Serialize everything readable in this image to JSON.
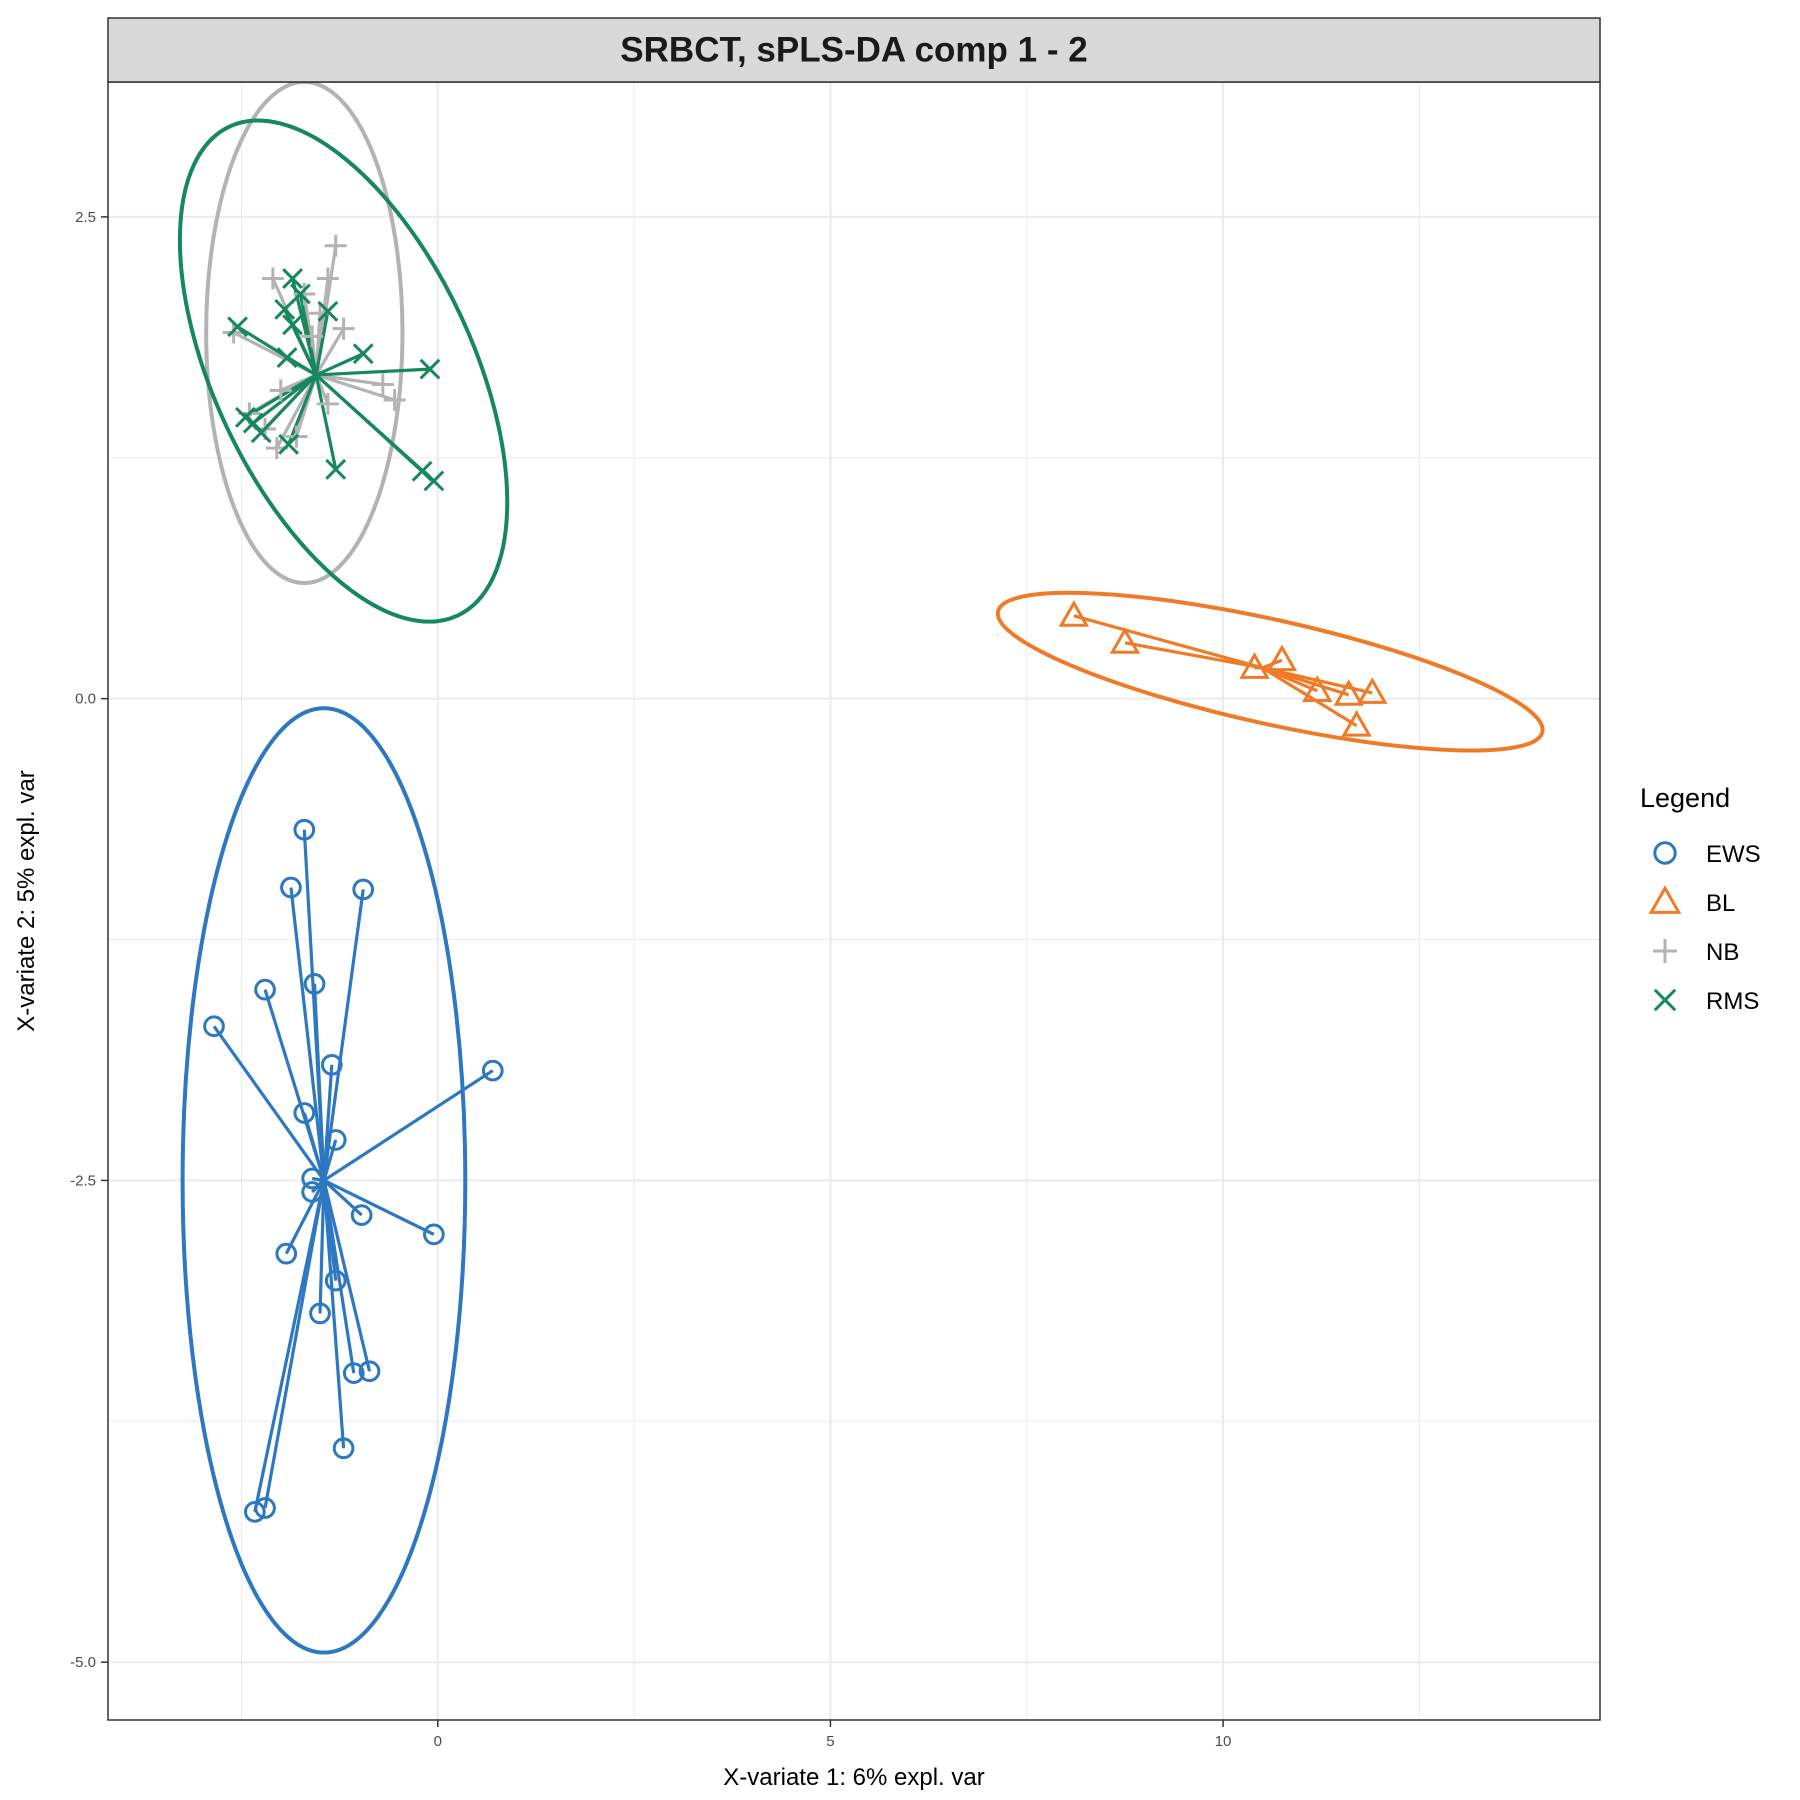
{
  "chart_data": {
    "type": "scatter",
    "title": "SRBCT, sPLS-DA comp 1 - 2",
    "xlabel": "X-variate 1: 6% expl. var",
    "ylabel": "X-variate 2: 5% expl. var",
    "xlim": [
      -4.2,
      14.8
    ],
    "ylim": [
      -5.3,
      3.2
    ],
    "x_ticks": [
      {
        "value": 0,
        "label": "0"
      },
      {
        "value": 5,
        "label": "5"
      },
      {
        "value": 10,
        "label": "10"
      }
    ],
    "y_ticks": [
      {
        "value": 2.5,
        "label": "2.5"
      },
      {
        "value": 0,
        "label": "0.0"
      },
      {
        "value": -2.5,
        "label": "-2.5"
      },
      {
        "value": -5,
        "label": "-5.0"
      }
    ],
    "grid": true,
    "legend": {
      "title": "Legend",
      "placement": "right"
    },
    "series": [
      {
        "name": "EWS",
        "marker": "circle",
        "color": "#2d78c0",
        "centroid": [
          -1.45,
          -2.5
        ],
        "ellipse": {
          "cx": -1.45,
          "cy": -2.5,
          "rx": 1.8,
          "ry": 2.45,
          "angle_deg": 0
        },
        "points": [
          [
            -1.7,
            -0.68
          ],
          [
            -1.87,
            -0.98
          ],
          [
            -0.95,
            -0.99
          ],
          [
            -2.2,
            -1.51
          ],
          [
            -1.57,
            -1.48
          ],
          [
            -2.85,
            -1.7
          ],
          [
            -1.35,
            -1.9
          ],
          [
            0.7,
            -1.93
          ],
          [
            -1.7,
            -2.15
          ],
          [
            -1.3,
            -2.29
          ],
          [
            -1.6,
            -2.49
          ],
          [
            -1.6,
            -2.56
          ],
          [
            -0.97,
            -2.68
          ],
          [
            -0.05,
            -2.78
          ],
          [
            -1.93,
            -2.88
          ],
          [
            -1.3,
            -3.02
          ],
          [
            -1.5,
            -3.19
          ],
          [
            -1.07,
            -3.5
          ],
          [
            -0.87,
            -3.49
          ],
          [
            -1.2,
            -3.89
          ],
          [
            -2.2,
            -4.2
          ],
          [
            -2.33,
            -4.22
          ]
        ]
      },
      {
        "name": "BL",
        "marker": "triangle",
        "color": "#ef7b29",
        "centroid": [
          10.5,
          0.16
        ],
        "ellipse": {
          "cx": 10.6,
          "cy": 0.14,
          "rx": 3.55,
          "ry": 0.27,
          "angle_deg": 12.5
        },
        "points": [
          [
            8.1,
            0.43
          ],
          [
            8.75,
            0.29
          ],
          [
            10.4,
            0.16
          ],
          [
            10.75,
            0.2
          ],
          [
            11.2,
            0.04
          ],
          [
            11.6,
            0.02
          ],
          [
            11.9,
            0.03
          ],
          [
            11.7,
            -0.14
          ]
        ]
      },
      {
        "name": "NB",
        "marker": "plus",
        "color": "#b3b3b3",
        "centroid": [
          -1.55,
          1.68
        ],
        "ellipse": {
          "cx": -1.7,
          "cy": 1.9,
          "rx": 1.25,
          "ry": 1.3,
          "angle_deg": 0
        },
        "points": [
          [
            -2.6,
            1.9
          ],
          [
            -2.1,
            2.18
          ],
          [
            -1.3,
            2.35
          ],
          [
            -1.4,
            2.18
          ],
          [
            -1.7,
            2.1
          ],
          [
            -1.5,
            2.0
          ],
          [
            -1.2,
            1.92
          ],
          [
            -1.6,
            1.88
          ],
          [
            -2.0,
            1.6
          ],
          [
            -0.7,
            1.63
          ],
          [
            -0.55,
            1.55
          ],
          [
            -1.4,
            1.53
          ],
          [
            -2.4,
            1.48
          ],
          [
            -2.2,
            1.4
          ],
          [
            -2.05,
            1.3
          ],
          [
            -1.8,
            1.36
          ]
        ]
      },
      {
        "name": "RMS",
        "marker": "x",
        "color": "#16885c",
        "centroid": [
          -1.55,
          1.68
        ],
        "ellipse": {
          "cx": -1.2,
          "cy": 1.7,
          "rx": 1.65,
          "ry": 1.4,
          "angle_deg": -25
        },
        "points": [
          [
            -1.85,
            2.18
          ],
          [
            -1.75,
            2.1
          ],
          [
            -1.95,
            2.02
          ],
          [
            -1.4,
            2.01
          ],
          [
            -1.85,
            1.94
          ],
          [
            -2.55,
            1.93
          ],
          [
            -0.95,
            1.79
          ],
          [
            -1.92,
            1.77
          ],
          [
            -0.1,
            1.71
          ],
          [
            -2.45,
            1.46
          ],
          [
            -2.35,
            1.43
          ],
          [
            -2.25,
            1.38
          ],
          [
            -1.9,
            1.32
          ],
          [
            -1.3,
            1.19
          ],
          [
            -0.2,
            1.18
          ],
          [
            -0.05,
            1.13
          ]
        ]
      }
    ]
  }
}
